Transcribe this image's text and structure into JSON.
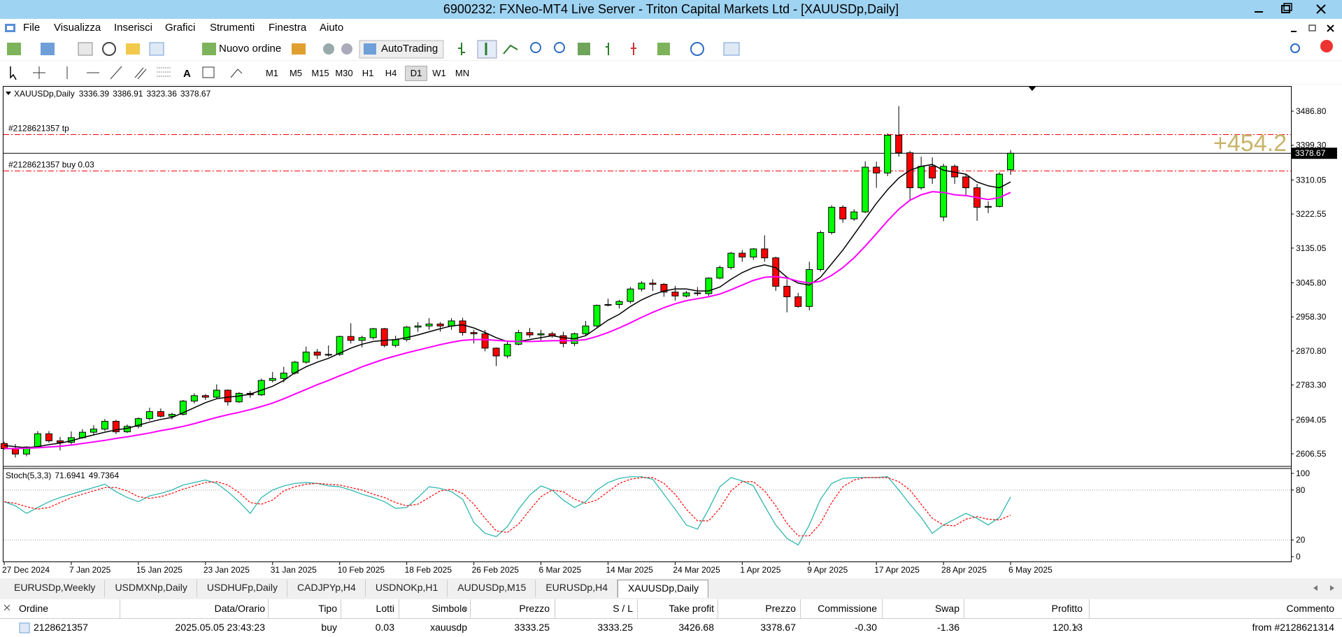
{
  "window": {
    "title": "6900232: FXNeo-MT4 Live Server - Triton Capital Markets Ltd - [XAUUSDp,Daily]"
  },
  "menu": {
    "items": [
      "File",
      "Visualizza",
      "Inserisci",
      "Grafici",
      "Strumenti",
      "Finestra",
      "Aiuto"
    ]
  },
  "toolbar": {
    "new_order": "Nuovo ordine",
    "autotrading": "AutoTrading",
    "timeframes": [
      "M1",
      "M5",
      "M15",
      "M30",
      "H1",
      "H4",
      "D1",
      "W1",
      "MN"
    ],
    "active_timeframe": 6
  },
  "chart_data": [
    {
      "type": "candlestick",
      "title": "XAUUSDp,Daily",
      "categories": [
        "27 Dec 2024",
        null,
        null,
        null,
        null,
        null,
        "7 Jan 2025",
        null,
        null,
        null,
        null,
        null,
        "15 Jan 2025",
        null,
        null,
        null,
        null,
        null,
        "23 Jan 2025",
        null,
        null,
        null,
        null,
        null,
        "31 Jan 2025",
        null,
        null,
        null,
        null,
        null,
        "10 Feb 2025",
        null,
        null,
        null,
        null,
        null,
        "18 Feb 2025",
        null,
        null,
        null,
        null,
        null,
        "26 Feb 2025",
        null,
        null,
        null,
        null,
        null,
        "6 Mar 2025",
        null,
        null,
        null,
        null,
        null,
        "14 Mar 2025",
        null,
        null,
        null,
        null,
        null,
        "24 Mar 2025",
        null,
        null,
        null,
        null,
        null,
        "1 Apr 2025",
        null,
        null,
        null,
        null,
        null,
        "9 Apr 2025",
        null,
        null,
        null,
        null,
        null,
        "17 Apr 2025",
        null,
        null,
        null,
        null,
        null,
        "28 Apr 2025",
        null,
        null,
        null,
        null,
        null,
        "6 May 2025"
      ],
      "open": [
        2633,
        2620,
        2606,
        2624,
        2658,
        2640,
        2636,
        2648,
        2662,
        2670,
        2690,
        2663,
        2677,
        2697,
        2715,
        2703,
        2708,
        2742,
        2756,
        2752,
        2770,
        2740,
        2762,
        2758,
        2795,
        2800,
        2814,
        2842,
        2868,
        2860,
        2862,
        2908,
        2898,
        2905,
        2928,
        2885,
        2900,
        2932,
        2935,
        2940,
        2935,
        2948,
        2918,
        2915,
        2878,
        2858,
        2888,
        2918,
        2912,
        2915,
        2910,
        2890,
        2915,
        2935,
        2988,
        2990,
        2998,
        3030,
        3045,
        3042,
        3022,
        3012,
        3020,
        3018,
        3058,
        3085,
        3122,
        3112,
        3133,
        3110,
        3037,
        3010,
        2985,
        3080,
        3175,
        3240,
        3210,
        3228,
        3343,
        3328,
        3425,
        3380,
        3290,
        3345,
        3215,
        3345,
        3318,
        3290,
        3240,
        3242,
        3336.39
      ],
      "high": [
        2638,
        2632,
        2626,
        2665,
        2665,
        2650,
        2664,
        2670,
        2680,
        2696,
        2694,
        2682,
        2700,
        2725,
        2723,
        2712,
        2745,
        2762,
        2760,
        2785,
        2772,
        2765,
        2768,
        2800,
        2817,
        2830,
        2845,
        2882,
        2876,
        2885,
        2910,
        2942,
        2910,
        2930,
        2930,
        2910,
        2935,
        2945,
        2955,
        2945,
        2955,
        2956,
        2925,
        2925,
        2880,
        2895,
        2925,
        2930,
        2925,
        2920,
        2920,
        2918,
        2948,
        2990,
        3005,
        3002,
        3035,
        3050,
        3055,
        3045,
        3038,
        3025,
        3035,
        3060,
        3090,
        3125,
        3130,
        3135,
        3168,
        3113,
        3055,
        3020,
        3100,
        3180,
        3245,
        3245,
        3235,
        3358,
        3357,
        3430,
        3500,
        3385,
        3370,
        3368,
        3352,
        3350,
        3325,
        3300,
        3255,
        3330,
        3386.91
      ],
      "low": [
        2617,
        2597,
        2600,
        2621,
        2635,
        2615,
        2630,
        2645,
        2655,
        2665,
        2657,
        2660,
        2672,
        2692,
        2700,
        2695,
        2705,
        2736,
        2745,
        2748,
        2730,
        2737,
        2750,
        2755,
        2790,
        2790,
        2810,
        2838,
        2850,
        2856,
        2858,
        2890,
        2880,
        2900,
        2880,
        2880,
        2895,
        2920,
        2925,
        2920,
        2925,
        2910,
        2890,
        2870,
        2832,
        2852,
        2885,
        2905,
        2898,
        2905,
        2880,
        2883,
        2910,
        2932,
        2985,
        2980,
        2993,
        3024,
        3025,
        3010,
        3000,
        3008,
        3012,
        3012,
        3055,
        3080,
        3100,
        3105,
        3100,
        3025,
        2970,
        2982,
        2975,
        3075,
        3170,
        3200,
        3205,
        3225,
        3290,
        3320,
        3370,
        3260,
        3285,
        3300,
        3204,
        3300,
        3268,
        3205,
        3225,
        3240,
        3323.36
      ],
      "close": [
        2620,
        2606,
        2624,
        2658,
        2640,
        2636,
        2648,
        2662,
        2670,
        2690,
        2663,
        2677,
        2697,
        2715,
        2703,
        2708,
        2742,
        2756,
        2752,
        2770,
        2740,
        2762,
        2758,
        2795,
        2800,
        2814,
        2842,
        2868,
        2860,
        2862,
        2908,
        2898,
        2905,
        2928,
        2885,
        2900,
        2932,
        2935,
        2940,
        2935,
        2948,
        2918,
        2915,
        2878,
        2858,
        2888,
        2918,
        2912,
        2915,
        2910,
        2890,
        2915,
        2935,
        2988,
        2990,
        2998,
        3030,
        3045,
        3042,
        3022,
        3012,
        3020,
        3018,
        3058,
        3085,
        3122,
        3112,
        3133,
        3110,
        3037,
        3010,
        2985,
        3080,
        3175,
        3240,
        3210,
        3228,
        3343,
        3328,
        3425,
        3380,
        3290,
        3345,
        3315,
        3345,
        3318,
        3290,
        3240,
        3242,
        3325,
        3378.67
      ],
      "up_color": "#00ff00",
      "down_color": "#ff0000",
      "lines": [
        {
          "color": "#000000",
          "values": [
            2628,
            2625,
            2622,
            2625,
            2630,
            2634,
            2640,
            2648,
            2655,
            2662,
            2668,
            2672,
            2680,
            2688,
            2695,
            2700,
            2712,
            2725,
            2738,
            2748,
            2752,
            2755,
            2760,
            2770,
            2780,
            2795,
            2815,
            2830,
            2842,
            2852,
            2865,
            2878,
            2888,
            2895,
            2898,
            2900,
            2905,
            2912,
            2920,
            2928,
            2935,
            2938,
            2930,
            2918,
            2905,
            2895,
            2895,
            2900,
            2905,
            2910,
            2905,
            2902,
            2910,
            2930,
            2950,
            2965,
            2985,
            3002,
            3015,
            3025,
            3030,
            3030,
            3025,
            3025,
            3035,
            3055,
            3072,
            3085,
            3092,
            3085,
            3060,
            3045,
            3040,
            3060,
            3095,
            3130,
            3170,
            3210,
            3250,
            3285,
            3315,
            3335,
            3345,
            3350,
            3335,
            3330,
            3325,
            3305,
            3295,
            3290,
            3305
          ]
        },
        {
          "color": "#ff00ff",
          "values": [
            2620,
            2620,
            2621,
            2622,
            2624,
            2626,
            2629,
            2633,
            2637,
            2641,
            2646,
            2650,
            2655,
            2660,
            2666,
            2671,
            2677,
            2684,
            2692,
            2700,
            2707,
            2713,
            2720,
            2728,
            2737,
            2748,
            2760,
            2772,
            2784,
            2795,
            2807,
            2818,
            2830,
            2840,
            2850,
            2858,
            2866,
            2873,
            2880,
            2887,
            2893,
            2898,
            2900,
            2900,
            2898,
            2896,
            2895,
            2895,
            2896,
            2897,
            2897,
            2897,
            2900,
            2908,
            2918,
            2930,
            2943,
            2957,
            2970,
            2982,
            2992,
            3000,
            3005,
            3010,
            3017,
            3028,
            3040,
            3052,
            3060,
            3062,
            3058,
            3050,
            3045,
            3050,
            3065,
            3085,
            3110,
            3140,
            3172,
            3205,
            3235,
            3258,
            3272,
            3280,
            3278,
            3272,
            3270,
            3265,
            3260,
            3265,
            3278
          ]
        }
      ],
      "ylim": [
        2577.8,
        3547.9
      ],
      "yticks": [
        {
          "value": 3486.8,
          "label": "3486.80"
        },
        {
          "value": 3399.3,
          "label": "3399.30"
        },
        3310.05,
        3222.55,
        3135.05,
        {
          "value": 3045.8,
          "label": "3045.80"
        },
        {
          "value": 2958.3,
          "label": "2958.30"
        },
        {
          "value": 2870.8,
          "label": "2870.80"
        },
        {
          "value": 2783.3,
          "label": "2783.30"
        },
        2694.05,
        2606.55
      ],
      "levels": [
        {
          "label": "#2128621357 tp",
          "value": 3426.68,
          "color": "#ff0000"
        },
        {
          "label": "#2128621357 buy 0.03",
          "value": 3333.25,
          "color": "#ff0000"
        }
      ],
      "overlay_text": "+454.2"
    },
    {
      "type": "line",
      "title": "Stoch(5,3,3)",
      "series": [
        {
          "color": "#20b2aa",
          "values": [
            66,
            61,
            52,
            59,
            66,
            71,
            75,
            79,
            83,
            87,
            78,
            71,
            66,
            73,
            76,
            80,
            86,
            89,
            92,
            88,
            78,
            66,
            52,
            71,
            80,
            85,
            88,
            89,
            88,
            85,
            84,
            80,
            75,
            71,
            66,
            58,
            59,
            71,
            84,
            82,
            78,
            69,
            41,
            28,
            24,
            36,
            57,
            74,
            85,
            80,
            68,
            59,
            66,
            80,
            89,
            94,
            96,
            96,
            93,
            75,
            57,
            38,
            33,
            57,
            84,
            95,
            91,
            85,
            61,
            38,
            22,
            14,
            38,
            69,
            88,
            94,
            95,
            95,
            95,
            96,
            80,
            63,
            47,
            28,
            38,
            45,
            52,
            46,
            38,
            47,
            71.6941
          ]
        },
        {
          "color": "#ff0000",
          "dash": true,
          "values": [
            66,
            64,
            60,
            57,
            59,
            65,
            71,
            75,
            79,
            83,
            83,
            79,
            72,
            70,
            72,
            76,
            81,
            85,
            89,
            90,
            86,
            77,
            65,
            63,
            68,
            79,
            84,
            87,
            88,
            87,
            86,
            83,
            80,
            75,
            71,
            65,
            61,
            63,
            71,
            79,
            81,
            76,
            63,
            46,
            31,
            29,
            39,
            56,
            72,
            80,
            78,
            69,
            64,
            68,
            78,
            88,
            93,
            95,
            95,
            88,
            75,
            57,
            43,
            43,
            58,
            79,
            90,
            90,
            79,
            61,
            40,
            25,
            25,
            40,
            65,
            84,
            92,
            95,
            95,
            95,
            90,
            80,
            63,
            46,
            38,
            37,
            45,
            48,
            45,
            44,
            49.7364
          ]
        }
      ],
      "ylim": [
        -5,
        105.9
      ],
      "yticks": [
        100,
        80,
        20,
        0
      ],
      "levels": [
        80,
        20
      ]
    }
  ],
  "tabs": {
    "items": [
      "EURUSDp,Weekly",
      "USDMXNp,Daily",
      "USDHUFp,Daily",
      "CADJPYp,H4",
      "USDNOKp,H1",
      "AUDUSDp,M15",
      "EURUSDp,H4",
      "XAUUSDp,Daily"
    ],
    "active": 7
  },
  "table": {
    "headers": [
      "Ordine",
      "Data/Orario",
      "Tipo",
      "Lotti",
      "Simbolo",
      "Prezzo",
      "S / L",
      "Take profit",
      "Prezzo",
      "Commissione",
      "Swap",
      "Profitto",
      "Commento"
    ],
    "rows": [
      [
        "2128621357",
        "2025.05.05 23:43:23",
        "buy",
        0.03,
        "xauusdp",
        3333.25,
        3333.25,
        3426.68,
        3378.67,
        "-0.30",
        -1.36,
        120.13,
        "from #2128621314"
      ]
    ]
  }
}
